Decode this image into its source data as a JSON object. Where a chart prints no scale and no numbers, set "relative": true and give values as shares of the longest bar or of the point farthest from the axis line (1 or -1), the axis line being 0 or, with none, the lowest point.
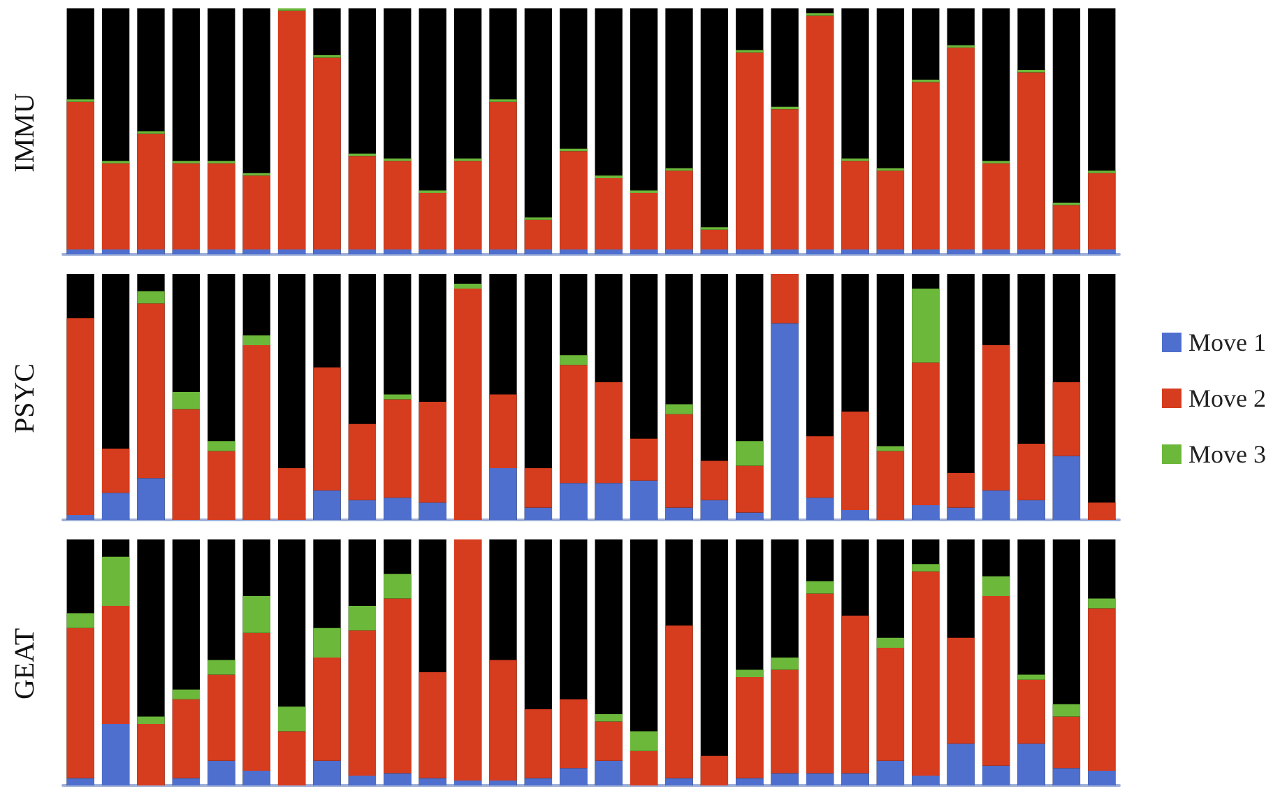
{
  "chart_data": [
    {
      "type": "bar",
      "ylabel": "IMMU",
      "relative": true,
      "stacked": true,
      "categories": [
        null,
        null,
        null,
        null,
        null,
        null,
        null,
        null,
        null,
        null,
        null,
        null,
        null,
        null,
        null,
        null,
        null,
        null,
        null,
        null,
        null,
        null,
        null,
        null,
        null,
        null,
        null,
        null,
        null,
        null
      ],
      "series": [
        {
          "color": "#4f6fce",
          "values": [
            0.02,
            0.02,
            0.02,
            0.02,
            0.02,
            0.02,
            0.02,
            0.02,
            0.02,
            0.02,
            0.02,
            0.02,
            0.02,
            0.02,
            0.02,
            0.02,
            0.02,
            0.02,
            0.02,
            0.02,
            0.02,
            0.02,
            0.02,
            0.02,
            0.02,
            0.02,
            0.02,
            0.02,
            0.02,
            0.02
          ]
        },
        {
          "color": "#d63c1e",
          "values": [
            0.6,
            0.35,
            0.47,
            0.35,
            0.35,
            0.3,
            0.97,
            0.78,
            0.38,
            0.36,
            0.23,
            0.36,
            0.6,
            0.12,
            0.4,
            0.29,
            0.23,
            0.32,
            0.08,
            0.8,
            0.57,
            0.95,
            0.36,
            0.32,
            0.68,
            0.82,
            0.35,
            0.72,
            0.18,
            0.31
          ]
        },
        {
          "color": "#6cb83a",
          "values": [
            0.01,
            0.01,
            0.01,
            0.01,
            0.01,
            0.01,
            0.01,
            0.01,
            0.01,
            0.01,
            0.01,
            0.01,
            0.01,
            0.01,
            0.01,
            0.01,
            0.01,
            0.01,
            0.01,
            0.01,
            0.01,
            0.01,
            0.01,
            0.01,
            0.01,
            0.01,
            0.01,
            0.01,
            0.01,
            0.01
          ]
        }
      ]
    },
    {
      "type": "bar",
      "ylabel": "PSYC",
      "relative": true,
      "stacked": true,
      "legend": "right",
      "categories": [
        null,
        null,
        null,
        null,
        null,
        null,
        null,
        null,
        null,
        null,
        null,
        null,
        null,
        null,
        null,
        null,
        null,
        null,
        null,
        null,
        null,
        null,
        null,
        null,
        null,
        null,
        null,
        null,
        null,
        null
      ],
      "series": [
        {
          "name": "Move 1",
          "color": "#4f6fce",
          "values": [
            0.02,
            0.11,
            0.17,
            0,
            0,
            0,
            0,
            0.12,
            0.08,
            0.09,
            0.07,
            0,
            0.21,
            0.05,
            0.15,
            0.15,
            0.16,
            0.05,
            0.08,
            0.03,
            0.8,
            0.09,
            0.04,
            0,
            0.06,
            0.05,
            0.12,
            0.08,
            0.26,
            0
          ]
        },
        {
          "name": "Move 2",
          "color": "#d63c1e",
          "values": [
            0.8,
            0.18,
            0.71,
            0.45,
            0.28,
            0.71,
            0.21,
            0.5,
            0.31,
            0.4,
            0.41,
            0.94,
            0.3,
            0.16,
            0.48,
            0.41,
            0.17,
            0.38,
            0.16,
            0.19,
            0.2,
            0.25,
            0.4,
            0.28,
            0.58,
            0.14,
            0.59,
            0.23,
            0.3,
            0.07
          ]
        },
        {
          "name": "Move 3",
          "color": "#6cb83a",
          "values": [
            0,
            0,
            0.05,
            0.07,
            0.04,
            0.04,
            0,
            0,
            0,
            0.02,
            0,
            0.02,
            0,
            0,
            0.04,
            0,
            0,
            0.04,
            0,
            0.1,
            0,
            0,
            0,
            0.02,
            0.3,
            0,
            0,
            0,
            0,
            0
          ]
        }
      ]
    },
    {
      "type": "bar",
      "ylabel": "GEAT",
      "relative": true,
      "stacked": true,
      "categories": [
        null,
        null,
        null,
        null,
        null,
        null,
        null,
        null,
        null,
        null,
        null,
        null,
        null,
        null,
        null,
        null,
        null,
        null,
        null,
        null,
        null,
        null,
        null,
        null,
        null,
        null,
        null,
        null,
        null,
        null
      ],
      "series": [
        {
          "color": "#4f6fce",
          "values": [
            0.03,
            0.25,
            0,
            0.03,
            0.1,
            0.06,
            0,
            0.1,
            0.04,
            0.05,
            0.03,
            0.02,
            0.02,
            0.03,
            0.07,
            0.1,
            0,
            0.03,
            0,
            0.03,
            0.05,
            0.05,
            0.05,
            0.1,
            0.04,
            0.17,
            0.08,
            0.17,
            0.07,
            0.06
          ]
        },
        {
          "color": "#d63c1e",
          "values": [
            0.61,
            0.48,
            0.25,
            0.32,
            0.35,
            0.56,
            0.22,
            0.42,
            0.59,
            0.71,
            0.43,
            0.98,
            0.49,
            0.28,
            0.28,
            0.16,
            0.14,
            0.62,
            0.12,
            0.41,
            0.42,
            0.73,
            0.64,
            0.46,
            0.83,
            0.43,
            0.69,
            0.26,
            0.21,
            0.66
          ]
        },
        {
          "color": "#6cb83a",
          "values": [
            0.06,
            0.2,
            0.03,
            0.04,
            0.06,
            0.15,
            0.1,
            0.12,
            0.1,
            0.1,
            0,
            0,
            0,
            0,
            0,
            0.03,
            0.08,
            0,
            0,
            0.03,
            0.05,
            0.05,
            0,
            0.04,
            0.03,
            0,
            0.08,
            0.02,
            0.05,
            0.04
          ]
        }
      ]
    }
  ]
}
